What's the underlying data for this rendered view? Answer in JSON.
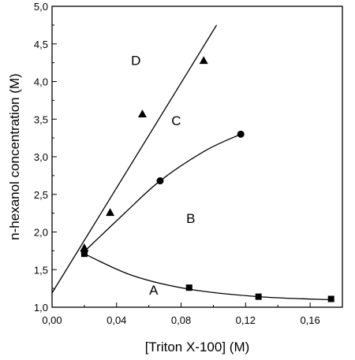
{
  "chart_data": {
    "type": "scatter",
    "xlabel": "[Triton X-100] (M)",
    "ylabel": "n-hexanol concentration (M)",
    "xlim": [
      0.0,
      0.18
    ],
    "ylim": [
      1.0,
      5.0
    ],
    "x_ticks": [
      "0,00",
      "0,04",
      "0,08",
      "0,12",
      "0,16"
    ],
    "x_tick_values": [
      0.0,
      0.04,
      0.08,
      0.12,
      0.16
    ],
    "y_ticks": [
      "1,0",
      "1,5",
      "2,0",
      "2,5",
      "3,0",
      "3,5",
      "4,0",
      "4,5",
      "5,0"
    ],
    "y_tick_values": [
      1.0,
      1.5,
      2.0,
      2.5,
      3.0,
      3.5,
      4.0,
      4.5,
      5.0
    ],
    "grid": false,
    "series": [
      {
        "marker": "triangle",
        "points": [
          [
            0.02,
            1.79
          ],
          [
            0.036,
            2.26
          ],
          [
            0.056,
            3.57
          ],
          [
            0.094,
            4.28
          ]
        ]
      },
      {
        "marker": "circle",
        "points": [
          [
            0.02,
            1.74
          ],
          [
            0.067,
            2.68
          ],
          [
            0.117,
            3.3
          ]
        ]
      },
      {
        "marker": "square",
        "points": [
          [
            0.02,
            1.71
          ],
          [
            0.085,
            1.26
          ],
          [
            0.128,
            1.14
          ],
          [
            0.173,
            1.11
          ]
        ]
      }
    ],
    "lines": [
      {
        "kind": "straight",
        "points": [
          [
            0.0,
            1.19
          ],
          [
            0.102,
            4.75
          ]
        ]
      },
      {
        "kind": "smooth",
        "points": [
          [
            0.02,
            1.74
          ],
          [
            0.045,
            2.25
          ],
          [
            0.067,
            2.68
          ],
          [
            0.095,
            3.08
          ],
          [
            0.117,
            3.3
          ]
        ]
      },
      {
        "kind": "smooth",
        "points": [
          [
            0.02,
            1.71
          ],
          [
            0.05,
            1.42
          ],
          [
            0.085,
            1.24
          ],
          [
            0.128,
            1.14
          ],
          [
            0.173,
            1.1
          ]
        ]
      }
    ],
    "annotations": [
      {
        "text": "D",
        "x": 0.052,
        "y": 4.22
      },
      {
        "text": "C",
        "x": 0.077,
        "y": 3.42
      },
      {
        "text": "B",
        "x": 0.086,
        "y": 2.12
      },
      {
        "text": "A",
        "x": 0.063,
        "y": 1.17
      }
    ]
  }
}
